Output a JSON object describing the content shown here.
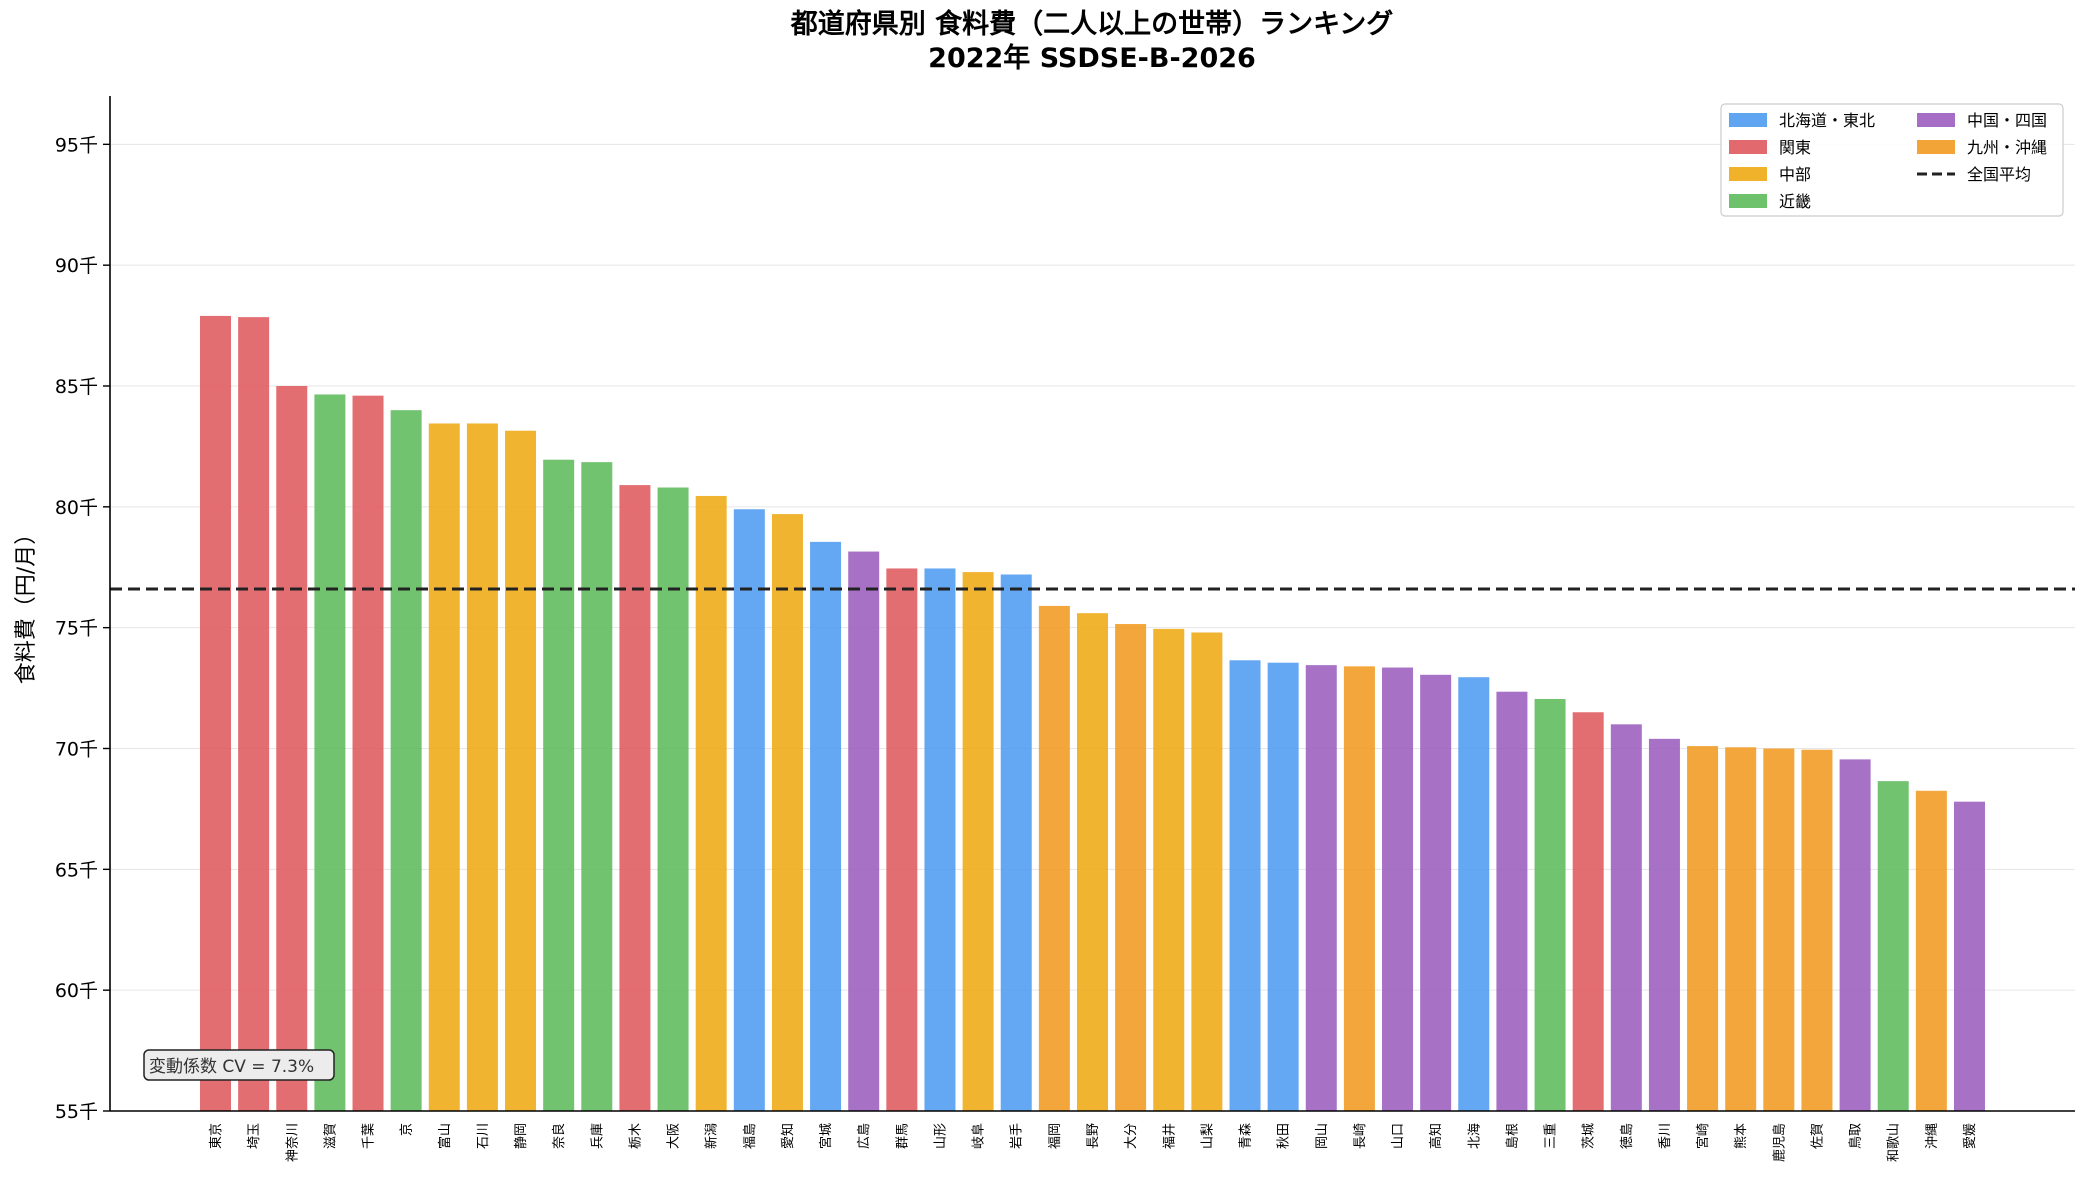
{
  "chart_data": {
    "type": "bar",
    "title_line1": "都道府県別 食料費（二人以上の世帯）ランキング",
    "title_line2": "2022年 SSDSE-B-2026",
    "ylabel": "食料費（円/月）",
    "ylim": [
      55000,
      97000
    ],
    "yticks": [
      55000,
      60000,
      65000,
      70000,
      75000,
      80000,
      85000,
      90000,
      95000
    ],
    "ytick_labels": [
      "55千",
      "60千",
      "65千",
      "70千",
      "75千",
      "80千",
      "85千",
      "90千",
      "95千"
    ],
    "grid": "horizontal",
    "legend_position": "top-right",
    "national_average": 76600,
    "annotation": "変動係数 CV = 7.3%",
    "regions": [
      {
        "key": "hokkaido_tohoku",
        "name": "北海道・東北",
        "color": "#4e9bf0"
      },
      {
        "key": "kanto",
        "name": "関東",
        "color": "#df5a5e"
      },
      {
        "key": "chubu",
        "name": "中部",
        "color": "#eeaa14"
      },
      {
        "key": "kinki",
        "name": "近畿",
        "color": "#5ebb5c"
      },
      {
        "key": "chugoku_shikoku",
        "name": "中国・四国",
        "color": "#9b5ebe"
      },
      {
        "key": "kyushu_okinawa",
        "name": "九州・沖縄",
        "color": "#f19a20"
      }
    ],
    "average_legend_label": "全国平均",
    "bars": [
      {
        "label": "東京",
        "value": 87900,
        "region": "kanto"
      },
      {
        "label": "埼玉",
        "value": 87850,
        "region": "kanto"
      },
      {
        "label": "神奈川",
        "value": 85000,
        "region": "kanto"
      },
      {
        "label": "滋賀",
        "value": 84650,
        "region": "kinki"
      },
      {
        "label": "千葉",
        "value": 84600,
        "region": "kanto"
      },
      {
        "label": "京",
        "value": 84000,
        "region": "kinki"
      },
      {
        "label": "富山",
        "value": 83450,
        "region": "chubu"
      },
      {
        "label": "石川",
        "value": 83450,
        "region": "chubu"
      },
      {
        "label": "静岡",
        "value": 83150,
        "region": "chubu"
      },
      {
        "label": "奈良",
        "value": 81950,
        "region": "kinki"
      },
      {
        "label": "兵庫",
        "value": 81850,
        "region": "kinki"
      },
      {
        "label": "栃木",
        "value": 80900,
        "region": "kanto"
      },
      {
        "label": "大阪",
        "value": 80800,
        "region": "kinki"
      },
      {
        "label": "新潟",
        "value": 80450,
        "region": "chubu"
      },
      {
        "label": "福島",
        "value": 79900,
        "region": "hokkaido_tohoku"
      },
      {
        "label": "愛知",
        "value": 79700,
        "region": "chubu"
      },
      {
        "label": "宮城",
        "value": 78550,
        "region": "hokkaido_tohoku"
      },
      {
        "label": "広島",
        "value": 78150,
        "region": "chugoku_shikoku"
      },
      {
        "label": "群馬",
        "value": 77450,
        "region": "kanto"
      },
      {
        "label": "山形",
        "value": 77450,
        "region": "hokkaido_tohoku"
      },
      {
        "label": "岐阜",
        "value": 77300,
        "region": "chubu"
      },
      {
        "label": "岩手",
        "value": 77200,
        "region": "hokkaido_tohoku"
      },
      {
        "label": "福岡",
        "value": 75900,
        "region": "kyushu_okinawa"
      },
      {
        "label": "長野",
        "value": 75600,
        "region": "chubu"
      },
      {
        "label": "大分",
        "value": 75150,
        "region": "kyushu_okinawa"
      },
      {
        "label": "福井",
        "value": 74950,
        "region": "chubu"
      },
      {
        "label": "山梨",
        "value": 74800,
        "region": "chubu"
      },
      {
        "label": "青森",
        "value": 73650,
        "region": "hokkaido_tohoku"
      },
      {
        "label": "秋田",
        "value": 73550,
        "region": "hokkaido_tohoku"
      },
      {
        "label": "岡山",
        "value": 73450,
        "region": "chugoku_shikoku"
      },
      {
        "label": "長崎",
        "value": 73400,
        "region": "kyushu_okinawa"
      },
      {
        "label": "山口",
        "value": 73350,
        "region": "chugoku_shikoku"
      },
      {
        "label": "高知",
        "value": 73050,
        "region": "chugoku_shikoku"
      },
      {
        "label": "北海",
        "value": 72950,
        "region": "hokkaido_tohoku"
      },
      {
        "label": "島根",
        "value": 72350,
        "region": "chugoku_shikoku"
      },
      {
        "label": "三重",
        "value": 72050,
        "region": "kinki"
      },
      {
        "label": "茨城",
        "value": 71500,
        "region": "kanto"
      },
      {
        "label": "徳島",
        "value": 71000,
        "region": "chugoku_shikoku"
      },
      {
        "label": "香川",
        "value": 70400,
        "region": "chugoku_shikoku"
      },
      {
        "label": "宮崎",
        "value": 70100,
        "region": "kyushu_okinawa"
      },
      {
        "label": "熊本",
        "value": 70050,
        "region": "kyushu_okinawa"
      },
      {
        "label": "鹿児島",
        "value": 70000,
        "region": "kyushu_okinawa"
      },
      {
        "label": "佐賀",
        "value": 69950,
        "region": "kyushu_okinawa"
      },
      {
        "label": "鳥取",
        "value": 69550,
        "region": "chugoku_shikoku"
      },
      {
        "label": "和歌山",
        "value": 68650,
        "region": "kinki"
      },
      {
        "label": "沖縄",
        "value": 68250,
        "region": "kyushu_okinawa"
      },
      {
        "label": "愛媛",
        "value": 67800,
        "region": "chugoku_shikoku"
      }
    ]
  }
}
